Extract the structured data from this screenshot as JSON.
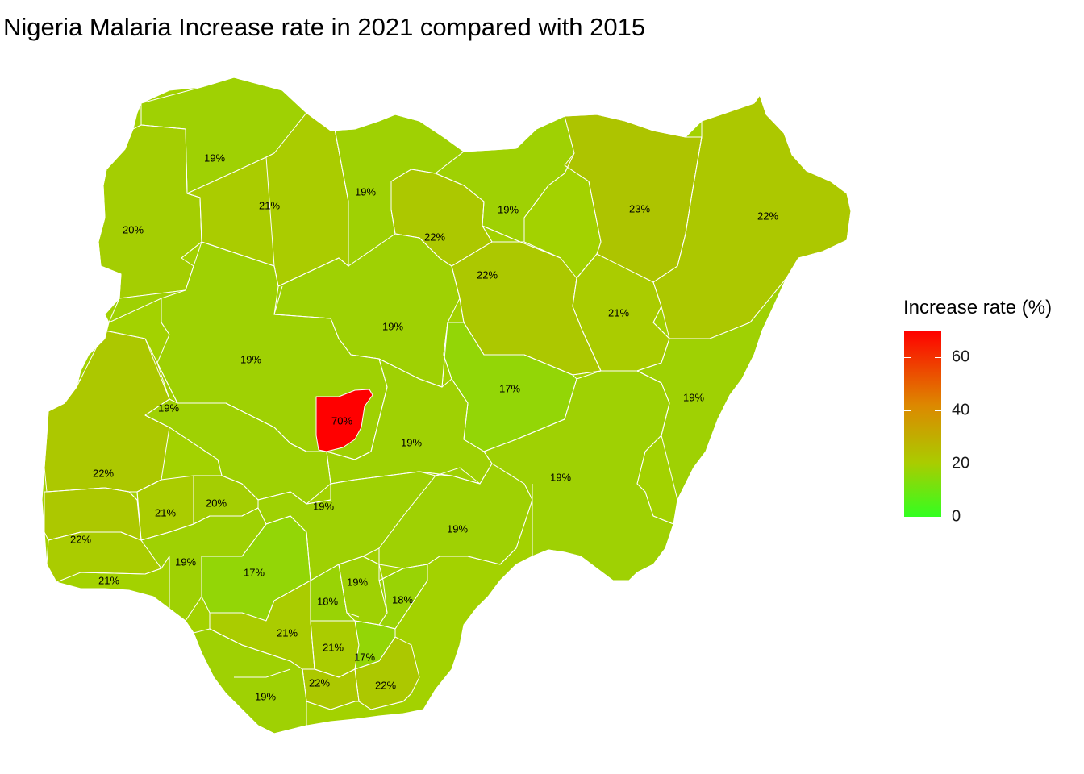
{
  "title": "Nigeria Malaria Increase rate in 2021 compared with 2015",
  "legend": {
    "title": "Increase rate (%)",
    "ticks": [
      "0",
      "20",
      "40",
      "60"
    ],
    "tick_values": [
      0,
      20,
      40,
      60
    ],
    "min": 0,
    "max": 70,
    "low_color": "#32FF20",
    "mid_color": "#AACC00",
    "high_color": "#FF0000"
  },
  "chart_data": {
    "type": "choropleth",
    "title": "Nigeria Malaria Increase rate in 2021 compared with 2015",
    "legend_title": "Increase rate (%)",
    "scale_range": [
      0,
      70
    ],
    "regions": [
      {
        "label": "19%",
        "value": 19
      },
      {
        "label": "20%",
        "value": 20
      },
      {
        "label": "21%",
        "value": 21
      },
      {
        "label": "19%",
        "value": 19
      },
      {
        "label": "22%",
        "value": 22
      },
      {
        "label": "19%",
        "value": 19
      },
      {
        "label": "22%",
        "value": 22
      },
      {
        "label": "23%",
        "value": 23
      },
      {
        "label": "22%",
        "value": 22
      },
      {
        "label": "21%",
        "value": 21
      },
      {
        "label": "19%",
        "value": 19
      },
      {
        "label": "19%",
        "value": 19
      },
      {
        "label": "17%",
        "value": 17
      },
      {
        "label": "19%",
        "value": 19
      },
      {
        "label": "70%",
        "value": 70
      },
      {
        "label": "19%",
        "value": 19
      },
      {
        "label": "19%",
        "value": 19
      },
      {
        "label": "22%",
        "value": 22
      },
      {
        "label": "19%",
        "value": 19
      },
      {
        "label": "21%",
        "value": 21
      },
      {
        "label": "20%",
        "value": 20
      },
      {
        "label": "19%",
        "value": 19
      },
      {
        "label": "22%",
        "value": 22
      },
      {
        "label": "19%",
        "value": 19
      },
      {
        "label": "21%",
        "value": 21
      },
      {
        "label": "17%",
        "value": 17
      },
      {
        "label": "19%",
        "value": 19
      },
      {
        "label": "18%",
        "value": 18
      },
      {
        "label": "18%",
        "value": 18
      },
      {
        "label": "21%",
        "value": 21
      },
      {
        "label": "19%",
        "value": 19
      },
      {
        "label": "21%",
        "value": 21
      },
      {
        "label": "17%",
        "value": 17
      },
      {
        "label": "22%",
        "value": 22
      },
      {
        "label": "22%",
        "value": 22
      },
      {
        "label": "19%",
        "value": 19
      }
    ]
  }
}
